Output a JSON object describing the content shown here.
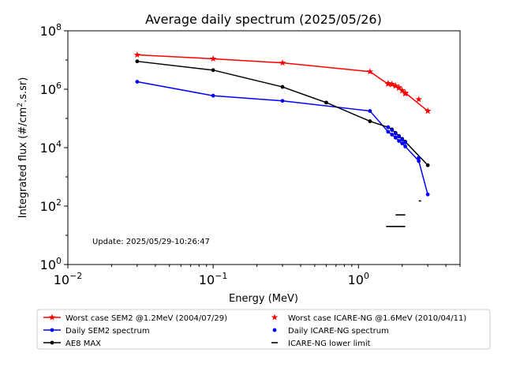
{
  "chart_data": {
    "type": "line",
    "title": "Average daily spectrum (2025/05/26)",
    "xlabel": "Energy (MeV)",
    "ylabel_base": "Integrated flux (#/cm",
    "ylabel_sup": "2",
    "ylabel_tail": ".s.sr)",
    "xscale": "log",
    "yscale": "log",
    "xlim": [
      0.01,
      5
    ],
    "ylim": [
      1,
      100000000
    ],
    "x_ticks": [
      {
        "value": 0.01,
        "base": "10",
        "exp": "−2"
      },
      {
        "value": 0.1,
        "base": "10",
        "exp": "−1"
      },
      {
        "value": 1,
        "base": "10",
        "exp": "0"
      }
    ],
    "y_ticks": [
      {
        "value": 1,
        "base": "10",
        "exp": "0"
      },
      {
        "value": 100,
        "base": "10",
        "exp": "2"
      },
      {
        "value": 10000,
        "base": "10",
        "exp": "4"
      },
      {
        "value": 1000000,
        "base": "10",
        "exp": "6"
      },
      {
        "value": 100000000,
        "base": "10",
        "exp": "8"
      }
    ],
    "annotation": "Update: 2025/05/29-10:26:47",
    "series": [
      {
        "name": "Worst case SEM2 @1.2MeV (2004/07/29)",
        "color": "#ff0000",
        "style": "line",
        "marker": "star",
        "x": [
          0.03,
          0.1,
          0.3,
          1.2,
          1.6,
          1.7,
          1.8,
          1.9,
          2.0,
          2.1,
          3.0
        ],
        "y": [
          15000000,
          11000000,
          8000000,
          4000000,
          1500000,
          1450000,
          1300000,
          1100000,
          900000,
          750000,
          180000
        ]
      },
      {
        "name": "Daily SEM2 spectrum",
        "color": "#0000ff",
        "style": "line",
        "marker": "dot",
        "x": [
          0.03,
          0.1,
          0.3,
          1.2,
          1.6,
          1.7,
          1.8,
          1.9,
          2.0,
          2.1,
          2.6,
          3.0
        ],
        "y": [
          1800000,
          600000,
          400000,
          180000,
          35000,
          28000,
          22000,
          17000,
          14000,
          11000,
          3500,
          250
        ]
      },
      {
        "name": "AE8 MAX",
        "color": "#000000",
        "style": "line",
        "marker": "dot",
        "x": [
          0.03,
          0.1,
          0.3,
          0.6,
          1.2,
          1.6,
          1.7,
          1.8,
          1.9,
          2.0,
          2.1,
          3.0
        ],
        "y": [
          9000000,
          4500000,
          1200000,
          350000,
          80000,
          50000,
          42000,
          32000,
          25000,
          20000,
          16000,
          2500
        ]
      },
      {
        "name": "Worst case ICARE-NG @1.6MeV (2010/04/11)",
        "color": "#ff0000",
        "style": "markers",
        "marker": "star",
        "x": [
          1.6,
          1.7,
          1.8,
          1.9,
          2.0,
          2.1,
          2.6,
          3.0
        ],
        "y": [
          1600000,
          1500000,
          1300000,
          1150000,
          900000,
          700000,
          450000,
          180000
        ]
      },
      {
        "name": "Daily ICARE-NG spectrum",
        "color": "#0000ff",
        "style": "markers",
        "marker": "dot",
        "x": [
          1.6,
          1.7,
          1.8,
          1.9,
          2.0,
          2.1,
          2.6
        ],
        "y": [
          50000,
          40000,
          30000,
          24000,
          19000,
          15000,
          4500
        ]
      },
      {
        "name": "ICARE-NG lower limit",
        "color": "#000000",
        "style": "hbars",
        "marker": "dash",
        "bars": [
          {
            "x0": 1.8,
            "x1": 2.1,
            "y": 50
          },
          {
            "x0": 2.6,
            "x1": 2.7,
            "y": 150
          },
          {
            "x0": 1.55,
            "x1": 2.1,
            "y": 20
          }
        ]
      }
    ],
    "legend_placement": "bottom",
    "legend_order": [
      0,
      3,
      1,
      4,
      2,
      5
    ]
  }
}
